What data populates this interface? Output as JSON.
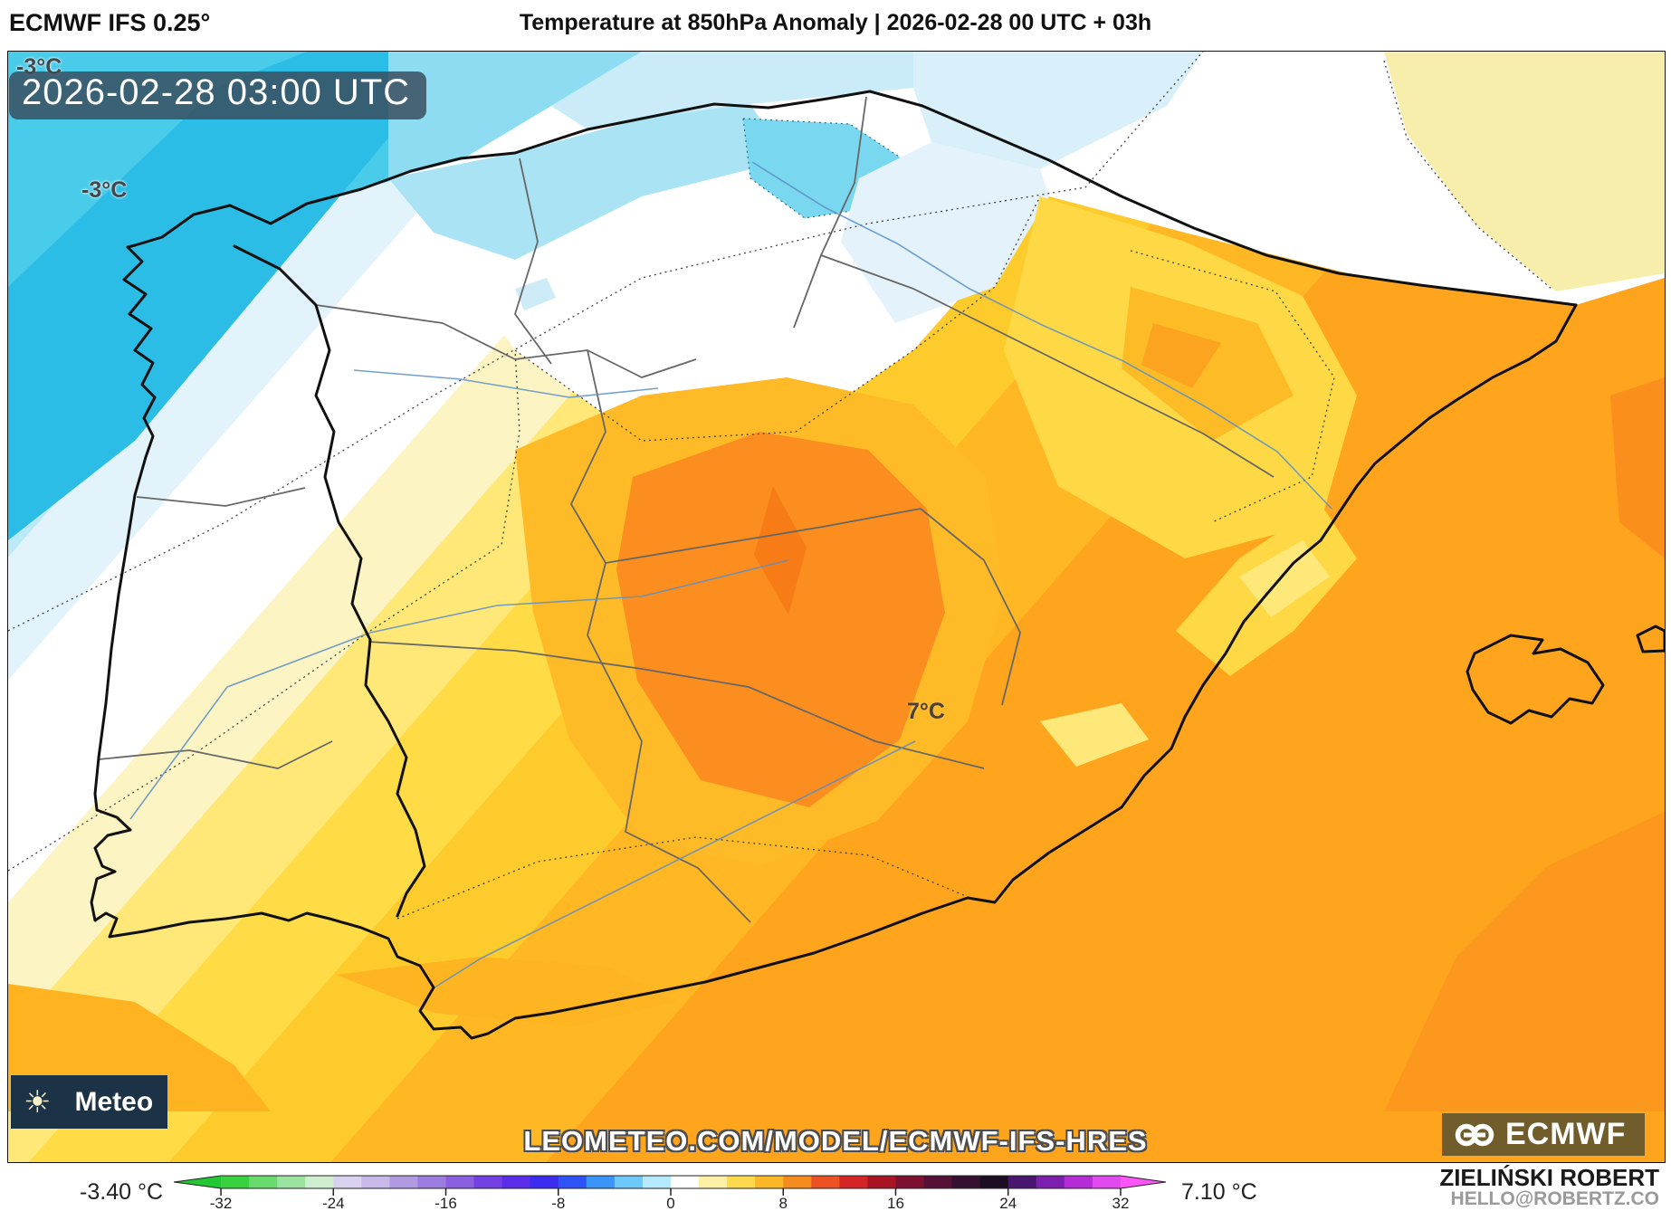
{
  "header": {
    "model": "ECMWF IFS 0.25°",
    "title": "Temperature at 850hPa Anomaly | 2026-02-28 00 UTC + 03h"
  },
  "map": {
    "timestamp_badge": "2026-02-28 03:00 UTC",
    "labels": [
      {
        "text": "-3°C"
      },
      {
        "text": "-3°C"
      },
      {
        "text": "7°C"
      }
    ],
    "watermark": "LEOMETEO.COM/MODEL/ECMWF-IFS-HRES",
    "brand_logo_text": "Meteo",
    "brand_sun_icon": "☀",
    "ecmwf_logo_text": "ECMWF"
  },
  "colorbar": {
    "min_label": "-3.40 °C",
    "max_label": "7.10 °C",
    "tick_values": [
      -32,
      -24,
      -16,
      -8,
      0,
      8,
      16,
      24,
      32
    ],
    "value_min": -32,
    "value_max": 32,
    "left_arrow_color": "#22c833",
    "right_arrow_color": "#f956f5",
    "segment_colors": [
      "#38d13f",
      "#68da6e",
      "#9ce3a0",
      "#cfeecf",
      "#d9d2ee",
      "#c7b9e9",
      "#b29ae3",
      "#9c7cde",
      "#8a5fe0",
      "#7440e4",
      "#5b2ce9",
      "#3c2cf0",
      "#2e52f5",
      "#3b95f8",
      "#6cc9fa",
      "#b5e9fd",
      "#ffffff",
      "#fdf0a6",
      "#fcd94d",
      "#fbb726",
      "#f78c1e",
      "#ee5123",
      "#d42425",
      "#a91425",
      "#7d1030",
      "#551036",
      "#361031",
      "#1c0e22",
      "#48166f",
      "#7c1fae",
      "#b32cd8",
      "#e14aee"
    ]
  },
  "credits": {
    "author": "ZIELIŃSKI ROBERT",
    "email": "HELLO@ROBERTZ.CO"
  }
}
